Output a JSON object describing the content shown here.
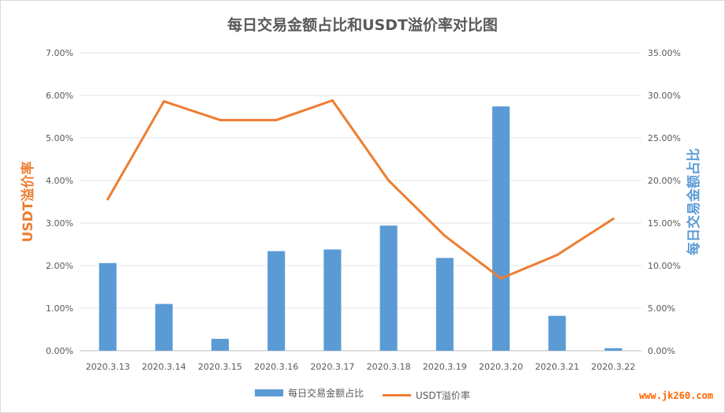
{
  "chart_data": {
    "type": "bar+line",
    "title": "每日交易金额占比和USDT溢价率对比图",
    "categories": [
      "2020.3.13",
      "2020.3.14",
      "2020.3.15",
      "2020.3.16",
      "2020.3.17",
      "2020.3.18",
      "2020.3.19",
      "2020.3.20",
      "2020.3.21",
      "2020.3.22"
    ],
    "series": [
      {
        "name": "每日交易金额占比",
        "type": "bar",
        "axis": "right",
        "color": "#5b9bd5",
        "values": [
          10.3,
          5.5,
          1.4,
          11.7,
          11.9,
          14.7,
          10.9,
          28.7,
          4.1,
          0.3
        ]
      },
      {
        "name": "USDT溢价率",
        "type": "line",
        "axis": "left",
        "color": "#ed7d31",
        "values": [
          3.56,
          5.86,
          5.42,
          5.42,
          5.88,
          4.0,
          2.7,
          1.7,
          2.25,
          3.1
        ]
      }
    ],
    "ylabel_left": "USDT溢价率",
    "ylabel_right": "每日交易金额占比",
    "ylim_left": [
      0,
      7
    ],
    "ylim_right": [
      0,
      35
    ],
    "yticks_left": [
      "0.00%",
      "1.00%",
      "2.00%",
      "3.00%",
      "4.00%",
      "5.00%",
      "6.00%",
      "7.00%"
    ],
    "yticks_right": [
      "0.00%",
      "5.00%",
      "10.00%",
      "15.00%",
      "20.00%",
      "25.00%",
      "30.00%",
      "35.00%"
    ],
    "grid": true,
    "legend_position": "bottom",
    "axis_label_colors": {
      "left": "#ed7d31",
      "right": "#5b9bd5"
    }
  },
  "watermark": "www.jk260.com"
}
